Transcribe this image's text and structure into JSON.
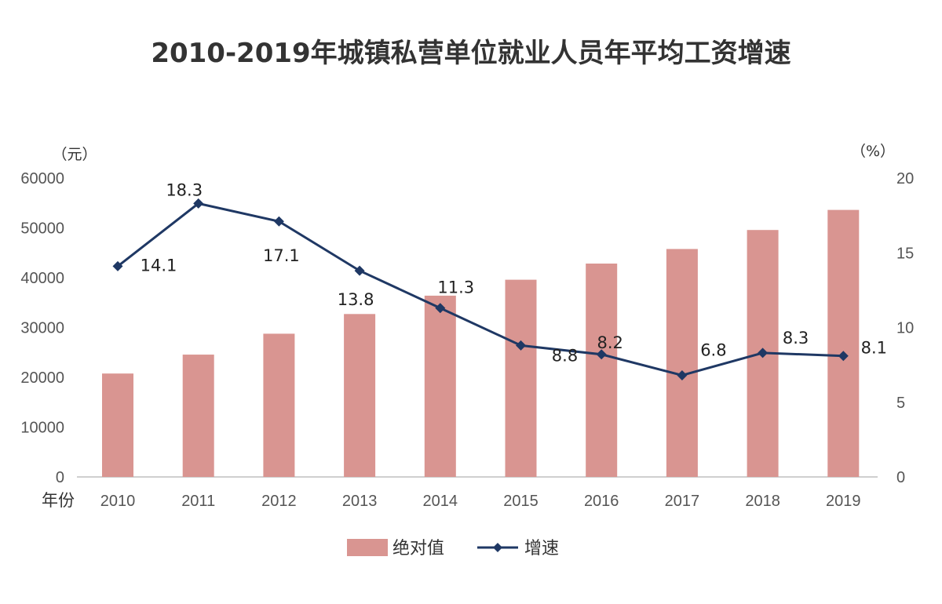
{
  "chart_data": {
    "type": "bar+line",
    "title": "2010-2019年城镇私营单位就业人员年平均工资增速",
    "categories": [
      "2010",
      "2011",
      "2012",
      "2013",
      "2014",
      "2015",
      "2016",
      "2017",
      "2018",
      "2019"
    ],
    "x_axis_name": "年份",
    "series": [
      {
        "name": "绝对值",
        "type": "bar",
        "axis": "left",
        "values": [
          20759,
          24556,
          28752,
          32706,
          36390,
          39589,
          42833,
          45761,
          49575,
          53604
        ],
        "color": "#d99591"
      },
      {
        "name": "增速",
        "type": "line",
        "axis": "right",
        "values": [
          14.1,
          18.3,
          17.1,
          13.8,
          11.3,
          8.8,
          8.2,
          6.8,
          8.3,
          8.1
        ],
        "labels": [
          "14.1",
          "18.3",
          "17.1",
          "13.8",
          "11.3",
          "8.8",
          "8.2",
          "6.8",
          "8.3",
          "8.1"
        ],
        "color": "#1f3864"
      }
    ],
    "y_left": {
      "unit": "（元）",
      "ylim": [
        0,
        60000
      ],
      "ticks": [
        "0",
        "10000",
        "20000",
        "30000",
        "40000",
        "50000",
        "60000"
      ]
    },
    "y_right": {
      "unit": "（%）",
      "ylim": [
        0,
        20
      ],
      "ticks": [
        "0",
        "5",
        "10",
        "15",
        "20"
      ]
    },
    "legend": {
      "position": "bottom-center",
      "items": [
        "绝对值",
        "增速"
      ]
    }
  }
}
